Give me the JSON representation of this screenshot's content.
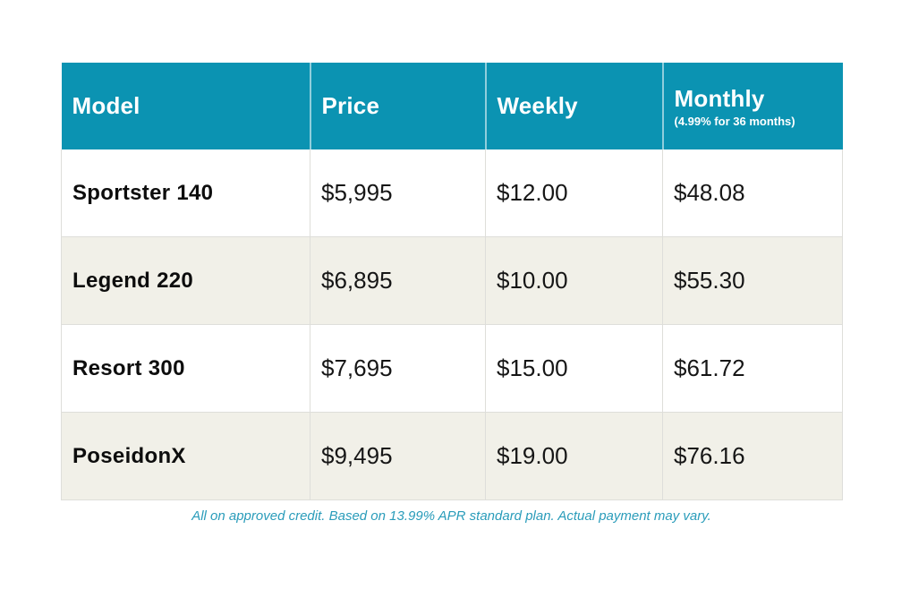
{
  "table": {
    "columns": [
      {
        "label": "Model"
      },
      {
        "label": "Price"
      },
      {
        "label": "Weekly"
      },
      {
        "label": "Monthly",
        "sublabel": "(4.99% for 36 months)"
      }
    ],
    "rows": [
      {
        "model": "Sportster 140",
        "price": "$5,995",
        "weekly": "$12.00",
        "monthly": "$48.08"
      },
      {
        "model": "Legend 220",
        "price": "$6,895",
        "weekly": "$10.00",
        "monthly": "$55.30"
      },
      {
        "model": "Resort 300",
        "price": "$7,695",
        "weekly": "$15.00",
        "monthly": "$61.72"
      },
      {
        "model": "PoseidonX",
        "price": "$9,495",
        "weekly": "$19.00",
        "monthly": "$76.16"
      }
    ],
    "footnote": "All on approved credit. Based on 13.99% APR standard plan. Actual payment may vary."
  },
  "colors": {
    "header_bg": "#0b93b2",
    "header_text": "#ffffff",
    "row_bg": "#ffffff",
    "row_alt_bg": "#f1f0e8",
    "body_text": "#161616",
    "grid_line": "#dededa",
    "footnote_text": "#2a9cba"
  }
}
